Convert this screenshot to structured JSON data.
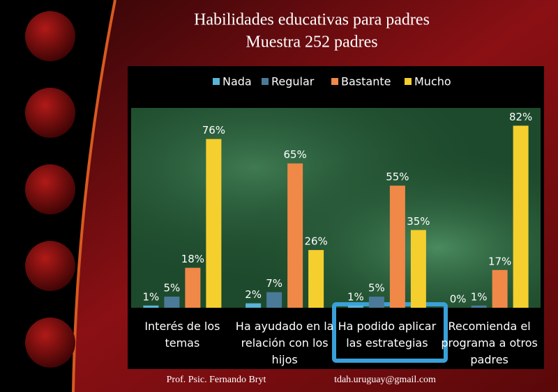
{
  "chart_data": {
    "type": "bar",
    "title": "Habilidades educativas para padres",
    "subtitle": "Muestra 252 padres",
    "categories": [
      "Interés de los temas",
      "Ha ayudado en la relación con los hijos",
      "Ha podido aplicar las estrategias",
      "Recomienda el programa a otros padres"
    ],
    "series": [
      {
        "name": "Nada",
        "color": "#5ab4d8",
        "values": [
          1,
          2,
          1,
          0
        ],
        "value_labels": [
          "1%",
          "2%",
          "1%",
          "0%"
        ]
      },
      {
        "name": "Regular",
        "color": "#4a7a98",
        "values": [
          5,
          7,
          5,
          1
        ],
        "value_labels": [
          "5%",
          "7%",
          "5%",
          "1%"
        ]
      },
      {
        "name": "Bastante",
        "color": "#f08848",
        "values": [
          18,
          65,
          55,
          17
        ],
        "value_labels": [
          "18%",
          "65%",
          "55%",
          "17%"
        ]
      },
      {
        "name": "Mucho",
        "color": "#f4cf2e",
        "values": [
          76,
          26,
          35,
          82
        ],
        "value_labels": [
          "76%",
          "26%",
          "35%",
          "82%"
        ]
      }
    ],
    "ylim": [
      0,
      90
    ],
    "legend": "top"
  },
  "footer": {
    "author": "Prof. Psic. Fernando Bryt",
    "email": "tdah.uruguay@gmail.com"
  }
}
